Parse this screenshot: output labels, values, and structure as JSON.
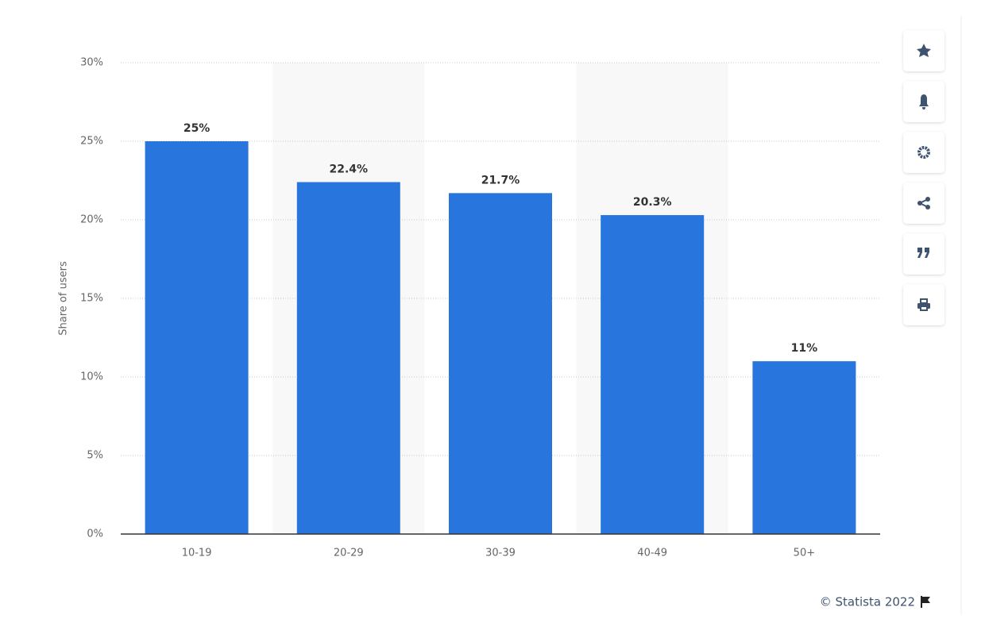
{
  "chart_data": {
    "type": "bar",
    "y_label": "Share of users",
    "categories": [
      "10-19",
      "20-29",
      "30-39",
      "40-49",
      "50+"
    ],
    "values": [
      25,
      22.4,
      21.7,
      20.3,
      11
    ],
    "value_labels": [
      "25%",
      "22.4%",
      "21.7%",
      "20.3%",
      "11%"
    ],
    "color": "#2876dd",
    "ylim": [
      0,
      30
    ],
    "yticks": [
      {
        "value": 0,
        "label": "0%"
      },
      {
        "value": 5,
        "label": "5%"
      },
      {
        "value": 10,
        "label": "10%"
      },
      {
        "value": 15,
        "label": "15%"
      },
      {
        "value": 20,
        "label": "20%"
      },
      {
        "value": 25,
        "label": "25%"
      },
      {
        "value": 30,
        "label": "30%"
      }
    ],
    "grid": true,
    "credit": "© Statista 2022"
  }
}
